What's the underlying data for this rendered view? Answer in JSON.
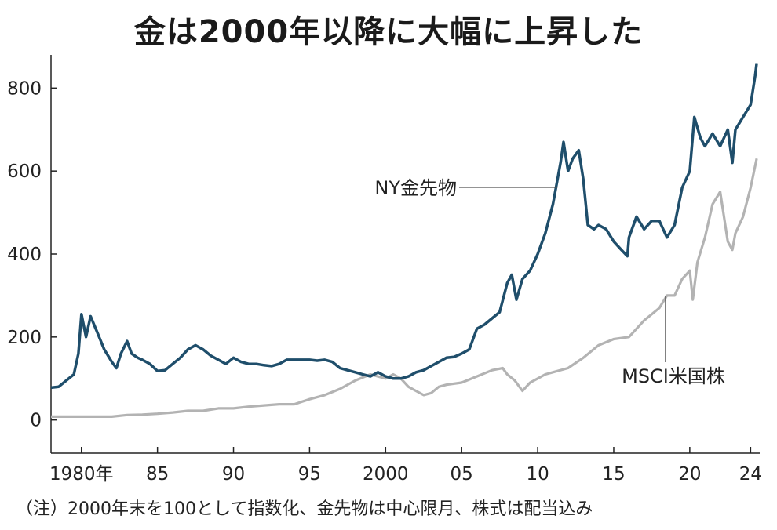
{
  "title": "金は2000年以降に大幅に上昇した",
  "note": "（注）2000年末を100として指数化、金先物は中心限月、株式は配当込み",
  "chart_data": {
    "type": "line",
    "title": "金は2000年以降に大幅に上昇した",
    "xlim": [
      1978,
      2024.6
    ],
    "ylim": [
      -80,
      880
    ],
    "y_ticks": [
      0,
      200,
      400,
      600,
      800
    ],
    "x_ticks": [
      {
        "value": 1980,
        "label": "1980年"
      },
      {
        "value": 1985,
        "label": "85"
      },
      {
        "value": 1990,
        "label": "90"
      },
      {
        "value": 1995,
        "label": "95"
      },
      {
        "value": 2000,
        "label": "2000"
      },
      {
        "value": 2005,
        "label": "05"
      },
      {
        "value": 2010,
        "label": "10"
      },
      {
        "value": 2015,
        "label": "15"
      },
      {
        "value": 2020,
        "label": "20"
      },
      {
        "value": 2024,
        "label": "24"
      }
    ],
    "grid": false,
    "series": [
      {
        "name": "NY金先物",
        "color": "#1f4e6b",
        "points": [
          [
            1978,
            78
          ],
          [
            1978.5,
            80
          ],
          [
            1979,
            95
          ],
          [
            1979.5,
            110
          ],
          [
            1979.8,
            160
          ],
          [
            1980.0,
            255
          ],
          [
            1980.3,
            200
          ],
          [
            1980.6,
            250
          ],
          [
            1981.0,
            215
          ],
          [
            1981.5,
            170
          ],
          [
            1982,
            140
          ],
          [
            1982.3,
            125
          ],
          [
            1982.6,
            160
          ],
          [
            1983,
            190
          ],
          [
            1983.3,
            160
          ],
          [
            1983.7,
            150
          ],
          [
            1984,
            145
          ],
          [
            1984.5,
            135
          ],
          [
            1985,
            118
          ],
          [
            1985.5,
            120
          ],
          [
            1986,
            135
          ],
          [
            1986.5,
            150
          ],
          [
            1987,
            170
          ],
          [
            1987.5,
            180
          ],
          [
            1988,
            170
          ],
          [
            1988.5,
            155
          ],
          [
            1989,
            145
          ],
          [
            1989.5,
            135
          ],
          [
            1990,
            150
          ],
          [
            1990.5,
            140
          ],
          [
            1991,
            135
          ],
          [
            1991.5,
            135
          ],
          [
            1992,
            132
          ],
          [
            1992.5,
            130
          ],
          [
            1993,
            135
          ],
          [
            1993.5,
            145
          ],
          [
            1994,
            145
          ],
          [
            1994.5,
            145
          ],
          [
            1995,
            145
          ],
          [
            1995.5,
            143
          ],
          [
            1996,
            145
          ],
          [
            1996.5,
            140
          ],
          [
            1997,
            125
          ],
          [
            1997.5,
            120
          ],
          [
            1998,
            115
          ],
          [
            1998.5,
            110
          ],
          [
            1999,
            105
          ],
          [
            1999.5,
            115
          ],
          [
            2000,
            105
          ],
          [
            2000.5,
            100
          ],
          [
            2001,
            100
          ],
          [
            2001.5,
            105
          ],
          [
            2002,
            115
          ],
          [
            2002.5,
            120
          ],
          [
            2003,
            130
          ],
          [
            2003.5,
            140
          ],
          [
            2004,
            150
          ],
          [
            2004.5,
            152
          ],
          [
            2005,
            160
          ],
          [
            2005.5,
            170
          ],
          [
            2006,
            220
          ],
          [
            2006.5,
            230
          ],
          [
            2007,
            245
          ],
          [
            2007.5,
            260
          ],
          [
            2008,
            330
          ],
          [
            2008.3,
            350
          ],
          [
            2008.6,
            290
          ],
          [
            2009,
            340
          ],
          [
            2009.5,
            360
          ],
          [
            2010,
            400
          ],
          [
            2010.5,
            450
          ],
          [
            2011,
            520
          ],
          [
            2011.5,
            620
          ],
          [
            2011.7,
            670
          ],
          [
            2012,
            600
          ],
          [
            2012.3,
            630
          ],
          [
            2012.7,
            650
          ],
          [
            2013,
            580
          ],
          [
            2013.3,
            470
          ],
          [
            2013.7,
            460
          ],
          [
            2014,
            470
          ],
          [
            2014.5,
            460
          ],
          [
            2015,
            430
          ],
          [
            2015.5,
            410
          ],
          [
            2015.9,
            395
          ],
          [
            2016,
            440
          ],
          [
            2016.5,
            490
          ],
          [
            2017,
            460
          ],
          [
            2017.5,
            480
          ],
          [
            2018,
            480
          ],
          [
            2018.5,
            440
          ],
          [
            2019,
            470
          ],
          [
            2019.5,
            560
          ],
          [
            2020,
            600
          ],
          [
            2020.3,
            730
          ],
          [
            2020.7,
            680
          ],
          [
            2021,
            660
          ],
          [
            2021.5,
            690
          ],
          [
            2022,
            660
          ],
          [
            2022.5,
            700
          ],
          [
            2022.8,
            620
          ],
          [
            2023,
            700
          ],
          [
            2023.5,
            730
          ],
          [
            2024,
            760
          ],
          [
            2024.3,
            830
          ],
          [
            2024.4,
            860
          ]
        ]
      },
      {
        "name": "MSCI米国株",
        "color": "#b3b3b3",
        "points": [
          [
            1978,
            8
          ],
          [
            1979,
            8
          ],
          [
            1980,
            8
          ],
          [
            1981,
            8
          ],
          [
            1982,
            8
          ],
          [
            1983,
            12
          ],
          [
            1984,
            13
          ],
          [
            1985,
            15
          ],
          [
            1986,
            18
          ],
          [
            1987,
            22
          ],
          [
            1988,
            22
          ],
          [
            1989,
            28
          ],
          [
            1990,
            28
          ],
          [
            1991,
            32
          ],
          [
            1992,
            35
          ],
          [
            1993,
            38
          ],
          [
            1994,
            38
          ],
          [
            1995,
            50
          ],
          [
            1996,
            60
          ],
          [
            1997,
            75
          ],
          [
            1998,
            95
          ],
          [
            1999,
            110
          ],
          [
            2000,
            100
          ],
          [
            2000.5,
            110
          ],
          [
            2001,
            100
          ],
          [
            2001.5,
            80
          ],
          [
            2002,
            70
          ],
          [
            2002.5,
            60
          ],
          [
            2003,
            65
          ],
          [
            2003.5,
            80
          ],
          [
            2004,
            85
          ],
          [
            2005,
            90
          ],
          [
            2006,
            105
          ],
          [
            2007,
            120
          ],
          [
            2007.7,
            125
          ],
          [
            2008,
            110
          ],
          [
            2008.5,
            95
          ],
          [
            2009,
            70
          ],
          [
            2009.5,
            90
          ],
          [
            2010,
            100
          ],
          [
            2010.5,
            110
          ],
          [
            2011,
            115
          ],
          [
            2012,
            125
          ],
          [
            2013,
            150
          ],
          [
            2014,
            180
          ],
          [
            2015,
            195
          ],
          [
            2016,
            200
          ],
          [
            2017,
            240
          ],
          [
            2018,
            270
          ],
          [
            2018.5,
            300
          ],
          [
            2019,
            300
          ],
          [
            2019.5,
            340
          ],
          [
            2020,
            360
          ],
          [
            2020.2,
            290
          ],
          [
            2020.5,
            380
          ],
          [
            2021,
            440
          ],
          [
            2021.5,
            520
          ],
          [
            2022,
            550
          ],
          [
            2022.5,
            430
          ],
          [
            2022.8,
            410
          ],
          [
            2023,
            450
          ],
          [
            2023.5,
            490
          ],
          [
            2024,
            560
          ],
          [
            2024.4,
            630
          ]
        ]
      }
    ],
    "annotations": [
      {
        "text": "NY金先物",
        "series": 0
      },
      {
        "text": "MSCI米国株",
        "series": 1
      }
    ]
  }
}
